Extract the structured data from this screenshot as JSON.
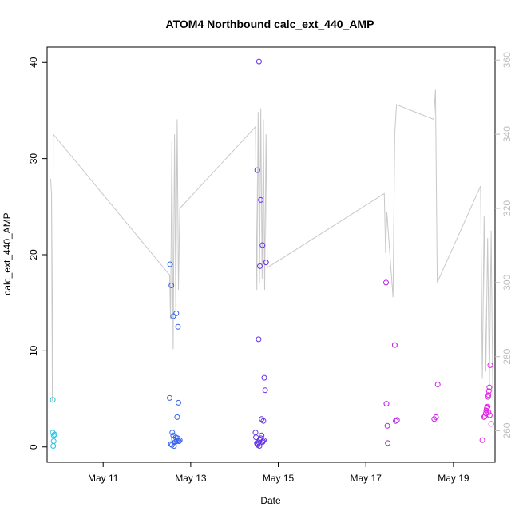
{
  "chart_data": {
    "type": "scatter",
    "title": "ATOM4 Northbound calc_ext_440_AMP",
    "xlabel": "Date",
    "ylabel": "calc_ext_440_AMP",
    "x_unit": "day of May",
    "xlim": [
      9.72,
      19.95
    ],
    "ylim": [
      -1.6,
      41.6
    ],
    "x_ticks": [
      {
        "value": 11,
        "label": "May 11"
      },
      {
        "value": 13,
        "label": "May 13"
      },
      {
        "value": 15,
        "label": "May 15"
      },
      {
        "value": 17,
        "label": "May 17"
      },
      {
        "value": 19,
        "label": "May 19"
      }
    ],
    "y_ticks": [
      0,
      10,
      20,
      30,
      40
    ],
    "y2_ticks": [
      260,
      280,
      300,
      320,
      340,
      360
    ],
    "y2lim": [
      251.5,
      363.5
    ],
    "grid": false,
    "colors": {
      "secondary_line": "#c8c8c8",
      "secondary_axis": "#bdbdbd",
      "point_gradient": [
        "#1ec8e6",
        "#2d6cf0",
        "#6a2de6",
        "#b61ee6",
        "#e61ee6"
      ]
    },
    "series": [
      {
        "role": "points",
        "marker": "open-circle",
        "x": [
          9.85,
          9.85,
          9.87,
          9.87,
          9.86,
          9.89,
          12.52,
          12.55,
          12.57,
          12.58,
          12.6,
          12.62,
          12.62,
          12.64,
          12.66,
          12.68,
          12.7,
          12.71,
          12.73,
          12.75,
          12.72,
          12.69,
          12.53,
          12.56,
          12.6,
          12.67,
          12.71,
          14.48,
          14.49,
          14.51,
          14.52,
          14.53,
          14.55,
          14.57,
          14.58,
          14.6,
          14.62,
          14.64,
          14.65,
          14.67,
          14.62,
          14.66,
          14.7,
          14.55,
          14.68,
          14.72,
          14.6,
          14.52,
          14.56,
          14.64,
          14.58,
          17.46,
          17.47,
          17.49,
          17.5,
          17.66,
          17.68,
          17.71,
          18.56,
          18.6,
          18.64,
          19.66,
          19.7,
          19.72,
          19.74,
          19.75,
          19.76,
          19.78,
          19.79,
          19.8,
          19.81,
          19.82,
          19.84,
          19.86,
          19.83,
          19.8,
          19.77
        ],
        "y": [
          4.9,
          1.5,
          1.2,
          0.6,
          0.1,
          1.3,
          5.1,
          0.3,
          0.2,
          1.5,
          1.2,
          0.8,
          0.1,
          0.5,
          1.0,
          0.6,
          0.9,
          0.7,
          0.6,
          0.7,
          4.6,
          3.1,
          19.0,
          16.8,
          13.6,
          13.9,
          12.5,
          1.5,
          1.0,
          0.4,
          0.3,
          0.2,
          0.5,
          0.1,
          0.8,
          0.9,
          1.2,
          0.5,
          0.6,
          0.7,
          2.9,
          2.7,
          5.9,
          11.2,
          7.2,
          19.2,
          25.7,
          28.8,
          40.1,
          21.0,
          18.8,
          17.1,
          4.5,
          2.2,
          0.4,
          10.6,
          2.7,
          2.8,
          2.9,
          3.1,
          6.5,
          0.7,
          3.1,
          3.2,
          3.5,
          3.8,
          4.0,
          4.2,
          5.2,
          5.4,
          5.8,
          6.2,
          8.5,
          2.4,
          3.3,
          3.6,
          4.1
        ]
      },
      {
        "role": "secondary-line",
        "axis": "right",
        "x": [
          9.8,
          9.82,
          9.84,
          9.86,
          12.52,
          12.54,
          12.57,
          12.6,
          12.63,
          12.66,
          12.69,
          12.72,
          12.75,
          14.48,
          14.51,
          14.54,
          14.57,
          14.6,
          14.63,
          14.66,
          14.69,
          14.72,
          14.75,
          17.42,
          17.45,
          17.48,
          17.62,
          17.66,
          17.7,
          18.55,
          18.59,
          18.63,
          19.62,
          19.66,
          19.7,
          19.74,
          19.78,
          19.82,
          19.86,
          19.9
        ],
        "y": [
          328,
          324,
          268,
          340,
          302,
          290,
          338,
          282,
          340,
          292,
          344,
          298,
          320,
          342,
          298,
          346,
          300,
          347,
          301,
          344,
          298,
          340,
          304,
          324,
          308,
          319,
          296,
          340,
          348,
          344,
          352,
          300,
          326,
          274,
          318,
          276,
          312,
          272,
          314,
          268
        ]
      }
    ]
  }
}
